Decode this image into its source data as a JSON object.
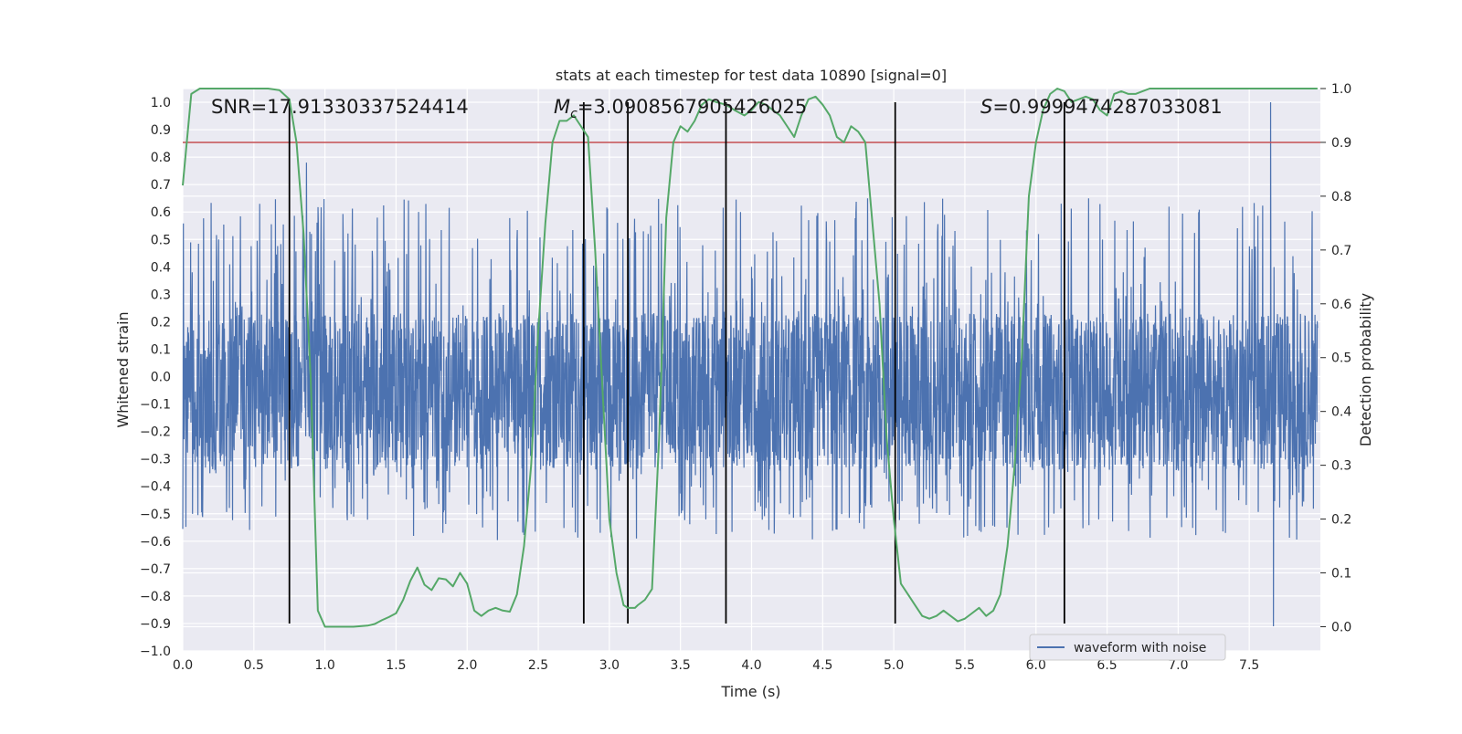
{
  "chart_data": {
    "type": "line",
    "title": "stats at each timestep for test data 10890 [signal=0]",
    "xlabel": "Time (s)",
    "ylabel_left": "Whitened strain",
    "ylabel_right": "Detection probability",
    "xlim": [
      0.0,
      8.0
    ],
    "ylim_left": [
      -1.0,
      1.05
    ],
    "ylim_right": [
      -0.045,
      1.0
    ],
    "xticks": [
      0.0,
      0.5,
      1.0,
      1.5,
      2.0,
      2.5,
      3.0,
      3.5,
      4.0,
      4.5,
      5.0,
      5.5,
      6.0,
      6.5,
      7.0,
      7.5
    ],
    "xtick_labels": [
      "0.0",
      "0.5",
      "1.0",
      "1.5",
      "2.0",
      "2.5",
      "3.0",
      "3.5",
      "4.0",
      "4.5",
      "5.0",
      "5.5",
      "6.0",
      "6.5",
      "7.0",
      "7.5"
    ],
    "yticks_left": [
      -1.0,
      -0.9,
      -0.8,
      -0.7,
      -0.6,
      -0.5,
      -0.4,
      -0.3,
      -0.2,
      -0.1,
      0.0,
      0.1,
      0.2,
      0.3,
      0.4,
      0.5,
      0.6,
      0.7,
      0.8,
      0.9,
      1.0
    ],
    "ytick_labels_left": [
      "−1.0",
      "−0.9",
      "−0.8",
      "−0.7",
      "−0.6",
      "−0.5",
      "−0.4",
      "−0.3",
      "−0.2",
      "−0.1",
      "0.0",
      "0.1",
      "0.2",
      "0.3",
      "0.4",
      "0.5",
      "0.6",
      "0.7",
      "0.8",
      "0.9",
      "1.0"
    ],
    "yticks_right": [
      0.0,
      0.1,
      0.2,
      0.3,
      0.4,
      0.5,
      0.6,
      0.7,
      0.8,
      0.9,
      1.0
    ],
    "ytick_labels_right": [
      "0.0",
      "0.1",
      "0.2",
      "0.3",
      "0.4",
      "0.5",
      "0.6",
      "0.7",
      "0.8",
      "0.9",
      "1.0"
    ],
    "annotations": {
      "snr": "SNR=17.91330337524414",
      "mc_symbol": "M",
      "mc_sub": "c",
      "mc_value": "=3.0908567905426025",
      "s_symbol": "S",
      "s_value": "=0.9999474287033081"
    },
    "threshold": {
      "axis": "right",
      "value": 0.9,
      "color": "#c44e52"
    },
    "vertical_lines": {
      "x": [
        0.75,
        2.82,
        3.13,
        3.82,
        5.01,
        6.2
      ],
      "y_range_left": [
        -0.9,
        1.0
      ],
      "color": "#000000"
    },
    "waveform": {
      "name": "waveform with noise",
      "color": "#4c72b0",
      "x_range": [
        0.0,
        7.98
      ],
      "core_band": [
        -0.34,
        0.23
      ],
      "typical_spike_max": 0.65,
      "typical_spike_min": -0.6,
      "max_value": 1.0,
      "min_value": -0.91
    },
    "detection_probability": {
      "color": "#55a868",
      "axis": "right",
      "x": [
        0.0,
        0.06,
        0.12,
        0.2,
        0.3,
        0.4,
        0.5,
        0.6,
        0.68,
        0.75,
        0.8,
        0.85,
        0.9,
        0.95,
        1.0,
        1.05,
        1.1,
        1.2,
        1.3,
        1.35,
        1.4,
        1.45,
        1.5,
        1.55,
        1.6,
        1.65,
        1.7,
        1.75,
        1.8,
        1.85,
        1.9,
        1.95,
        2.0,
        2.05,
        2.1,
        2.15,
        2.2,
        2.25,
        2.3,
        2.35,
        2.4,
        2.45,
        2.5,
        2.55,
        2.6,
        2.65,
        2.7,
        2.75,
        2.8,
        2.85,
        2.9,
        2.95,
        3.0,
        3.05,
        3.1,
        3.13,
        3.18,
        3.2,
        3.25,
        3.3,
        3.35,
        3.4,
        3.45,
        3.5,
        3.55,
        3.6,
        3.65,
        3.7,
        3.75,
        3.82,
        3.88,
        3.95,
        4.0,
        4.05,
        4.1,
        4.15,
        4.2,
        4.25,
        4.3,
        4.35,
        4.4,
        4.45,
        4.5,
        4.55,
        4.6,
        4.65,
        4.7,
        4.75,
        4.8,
        4.85,
        4.9,
        4.95,
        5.0,
        5.05,
        5.1,
        5.15,
        5.2,
        5.25,
        5.3,
        5.35,
        5.4,
        5.45,
        5.5,
        5.55,
        5.6,
        5.65,
        5.7,
        5.75,
        5.8,
        5.85,
        5.9,
        5.95,
        6.0,
        6.05,
        6.1,
        6.15,
        6.2,
        6.25,
        6.3,
        6.35,
        6.4,
        6.45,
        6.5,
        6.55,
        6.6,
        6.65,
        6.7,
        6.75,
        6.8,
        6.85,
        6.9,
        6.95,
        7.0,
        7.05,
        7.1,
        7.15,
        7.2,
        7.3,
        7.4,
        7.5,
        7.6,
        7.7,
        7.8,
        7.98
      ],
      "y": [
        0.82,
        0.99,
        1.0,
        1.0,
        1.0,
        1.0,
        1.0,
        1.0,
        0.997,
        0.98,
        0.9,
        0.73,
        0.46,
        0.03,
        0.0,
        0.0,
        0.0,
        0.0,
        0.002,
        0.005,
        0.012,
        0.018,
        0.025,
        0.05,
        0.085,
        0.11,
        0.078,
        0.068,
        0.09,
        0.088,
        0.075,
        0.1,
        0.08,
        0.03,
        0.02,
        0.03,
        0.035,
        0.03,
        0.028,
        0.06,
        0.15,
        0.3,
        0.55,
        0.75,
        0.9,
        0.94,
        0.94,
        0.95,
        0.93,
        0.91,
        0.7,
        0.45,
        0.2,
        0.1,
        0.04,
        0.035,
        0.035,
        0.04,
        0.05,
        0.07,
        0.35,
        0.76,
        0.9,
        0.93,
        0.92,
        0.94,
        0.97,
        0.98,
        0.975,
        0.97,
        0.96,
        0.95,
        0.96,
        0.975,
        0.97,
        0.96,
        0.95,
        0.93,
        0.91,
        0.95,
        0.98,
        0.985,
        0.97,
        0.95,
        0.91,
        0.9,
        0.93,
        0.92,
        0.9,
        0.75,
        0.6,
        0.35,
        0.2,
        0.08,
        0.06,
        0.04,
        0.02,
        0.015,
        0.02,
        0.03,
        0.02,
        0.01,
        0.015,
        0.025,
        0.035,
        0.02,
        0.03,
        0.06,
        0.15,
        0.3,
        0.5,
        0.8,
        0.9,
        0.96,
        0.99,
        1.0,
        0.995,
        0.975,
        0.98,
        0.985,
        0.98,
        0.96,
        0.95,
        0.99,
        0.995,
        0.99,
        0.99,
        0.995,
        1.0,
        1.0,
        1.0,
        1.0,
        1.0,
        1.0,
        1.0,
        1.0,
        1.0,
        1.0,
        1.0,
        1.0,
        1.0,
        1.0,
        1.0,
        1.0
      ]
    },
    "legend": {
      "placement": "lower-right",
      "entries": [
        "waveform with noise"
      ]
    },
    "grid": true,
    "colors": {
      "plot_background": "#eaeaf2",
      "grid": "#ffffff"
    }
  }
}
